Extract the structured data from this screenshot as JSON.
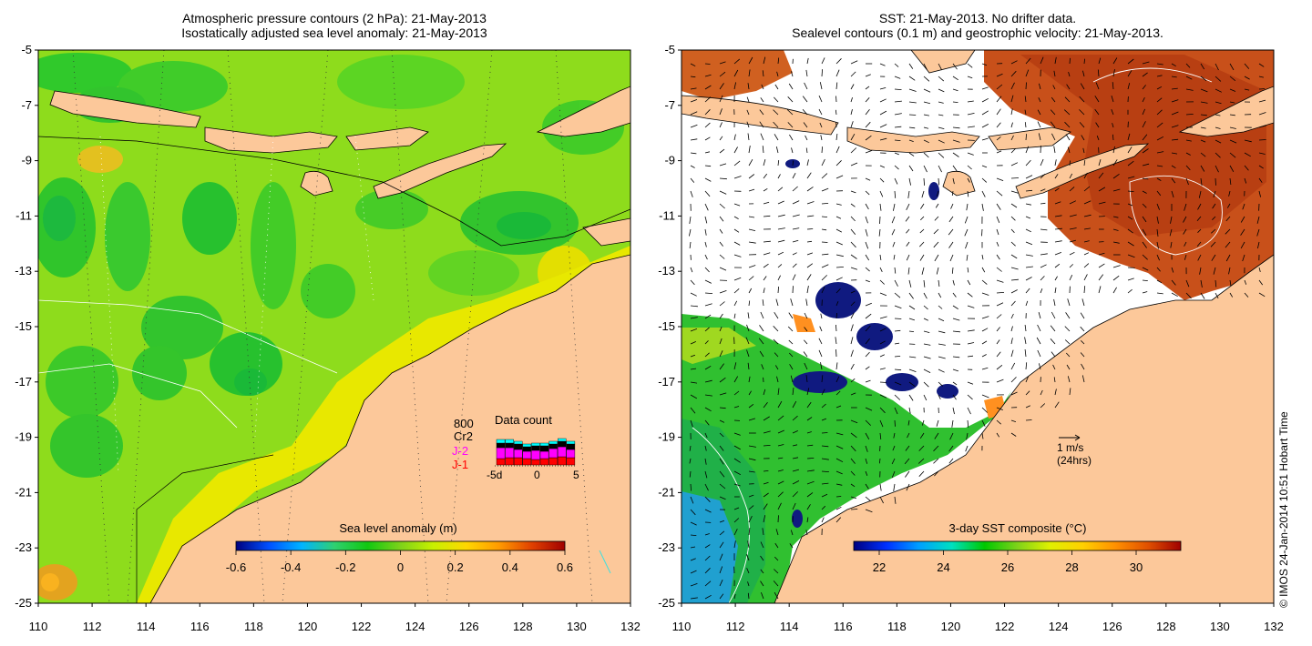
{
  "left_panel": {
    "title_line1": "Atmospheric pressure contours (2 hPa): 21-May-2013",
    "title_line2": "Isostatically adjusted sea level anomaly: 21-May-2013",
    "colorbar_label": "Sea level anomaly (m)",
    "colorbar_ticks": [
      "-0.6",
      "-0.4",
      "-0.2",
      "0",
      "0.2",
      "0.4",
      "0.6"
    ],
    "colorbar_colors": [
      "#00007f",
      "#0050ff",
      "#00b4ff",
      "#30d070",
      "#11c811",
      "#7ed21a",
      "#c8f000",
      "#ffd700",
      "#ff9a00",
      "#e04000",
      "#a00000"
    ],
    "data_count": {
      "title": "Data count",
      "missions": [
        "800",
        "Cr2",
        "J-2",
        "J-1"
      ],
      "mission_colors": [
        "#00ffff",
        "#000000",
        "#ff00ff",
        "#ff0000"
      ],
      "x_ticks": [
        "-5d",
        "0",
        "5"
      ]
    }
  },
  "right_panel": {
    "title_line1": "SST: 21-May-2013. No drifter data.",
    "title_line2": "Sealevel contours (0.1 m) and geostrophic velocity: 21-May-2013.",
    "colorbar_label": "3-day SST composite (°C)",
    "colorbar_ticks": [
      "22",
      "24",
      "26",
      "28",
      "30"
    ],
    "colorbar_colors": [
      "#00007f",
      "#0030ff",
      "#00a0ff",
      "#00e0c0",
      "#00c800",
      "#7ed21a",
      "#e0f000",
      "#ffd000",
      "#ff9000",
      "#e05000",
      "#a00000"
    ],
    "velocity_scale_label": "1 m/s",
    "velocity_scale_sub": "(24hrs)"
  },
  "axes": {
    "lon_ticks": [
      "110",
      "112",
      "114",
      "116",
      "118",
      "120",
      "122",
      "124",
      "126",
      "128",
      "130",
      "132"
    ],
    "lat_ticks": [
      "-5",
      "-7",
      "-9",
      "-11",
      "-13",
      "-15",
      "-17",
      "-19",
      "-21",
      "-23",
      "-25"
    ]
  },
  "credit": "© IMOS 24-Jan-2014 10:51 Hobart Time",
  "colors": {
    "land": "#fcc89a",
    "ocean_sla": "#7ed21a",
    "sst_warm": "#c84a10",
    "sst_cool": "#30c830",
    "cloud": "#ffffff"
  }
}
